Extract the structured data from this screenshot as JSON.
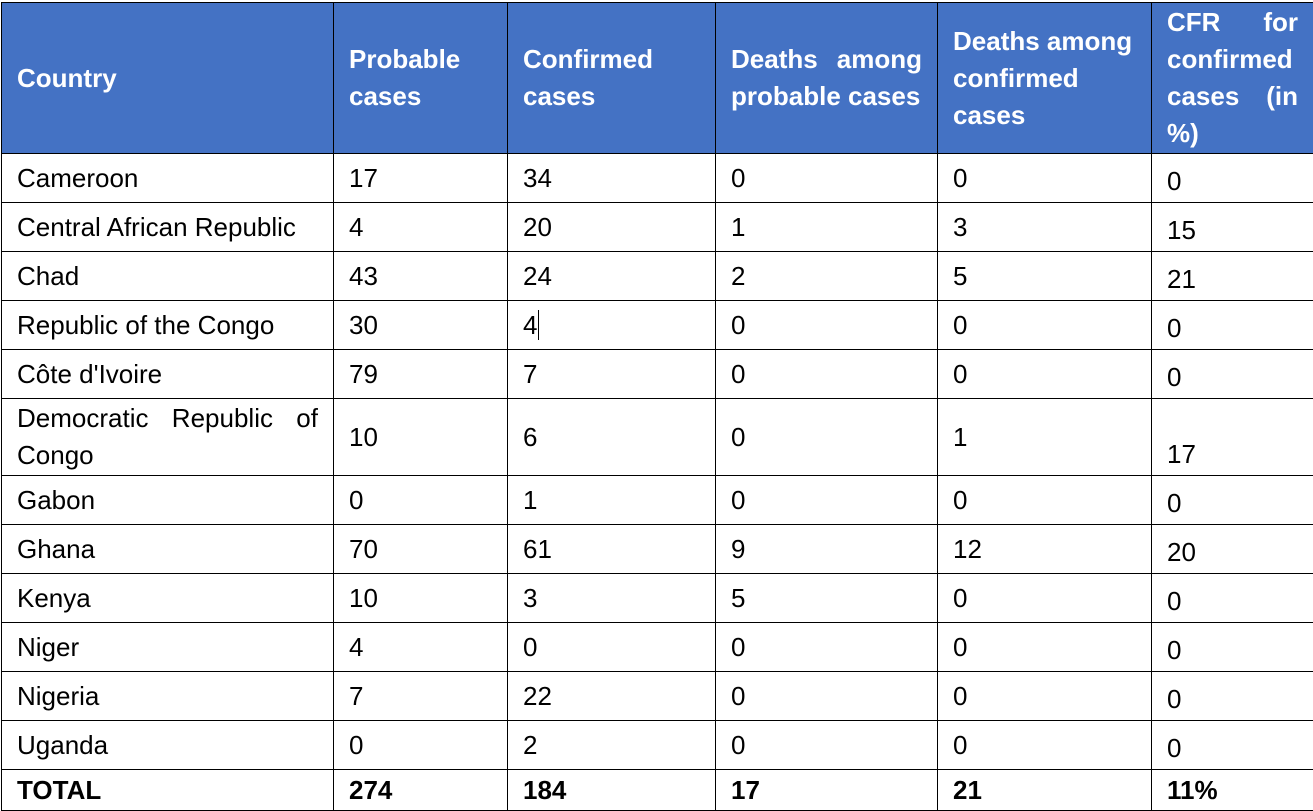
{
  "table": {
    "headers": [
      "Country",
      "Probable cases",
      "Confirmed cases",
      "Deaths among probable cases",
      "Deaths among confirmed cases",
      "CFR for confirmed cases (in %)"
    ],
    "rows": [
      [
        "Cameroon",
        "17",
        "34",
        "0",
        "0",
        "0"
      ],
      [
        "Central African Republic",
        "4",
        "20",
        "1",
        "3",
        "15"
      ],
      [
        "Chad",
        "43",
        "24",
        "2",
        "5",
        "21"
      ],
      [
        "Republic of the Congo",
        "30",
        "4",
        "0",
        "0",
        "0"
      ],
      [
        "Côte d'Ivoire",
        "79",
        "7",
        "0",
        "0",
        "0"
      ],
      [
        "Democratic Republic of Congo",
        "10",
        "6",
        "0",
        "1",
        "17"
      ],
      [
        "Gabon",
        "0",
        "1",
        "0",
        "0",
        "0"
      ],
      [
        "Ghana",
        "70",
        "61",
        "9",
        "12",
        "20"
      ],
      [
        "Kenya",
        "10",
        "3",
        "5",
        "0",
        "0"
      ],
      [
        "Niger",
        "4",
        "0",
        "0",
        "0",
        "0"
      ],
      [
        "Nigeria",
        "7",
        "22",
        "0",
        "0",
        "0"
      ],
      [
        "Uganda",
        "0",
        "2",
        "0",
        "0",
        "0"
      ]
    ],
    "total": [
      "TOTAL",
      "274",
      "184",
      "17",
      "21",
      "11%"
    ]
  },
  "colors": {
    "header_background": "#4472c4",
    "header_text": "#ffffff",
    "border": "#000000"
  }
}
